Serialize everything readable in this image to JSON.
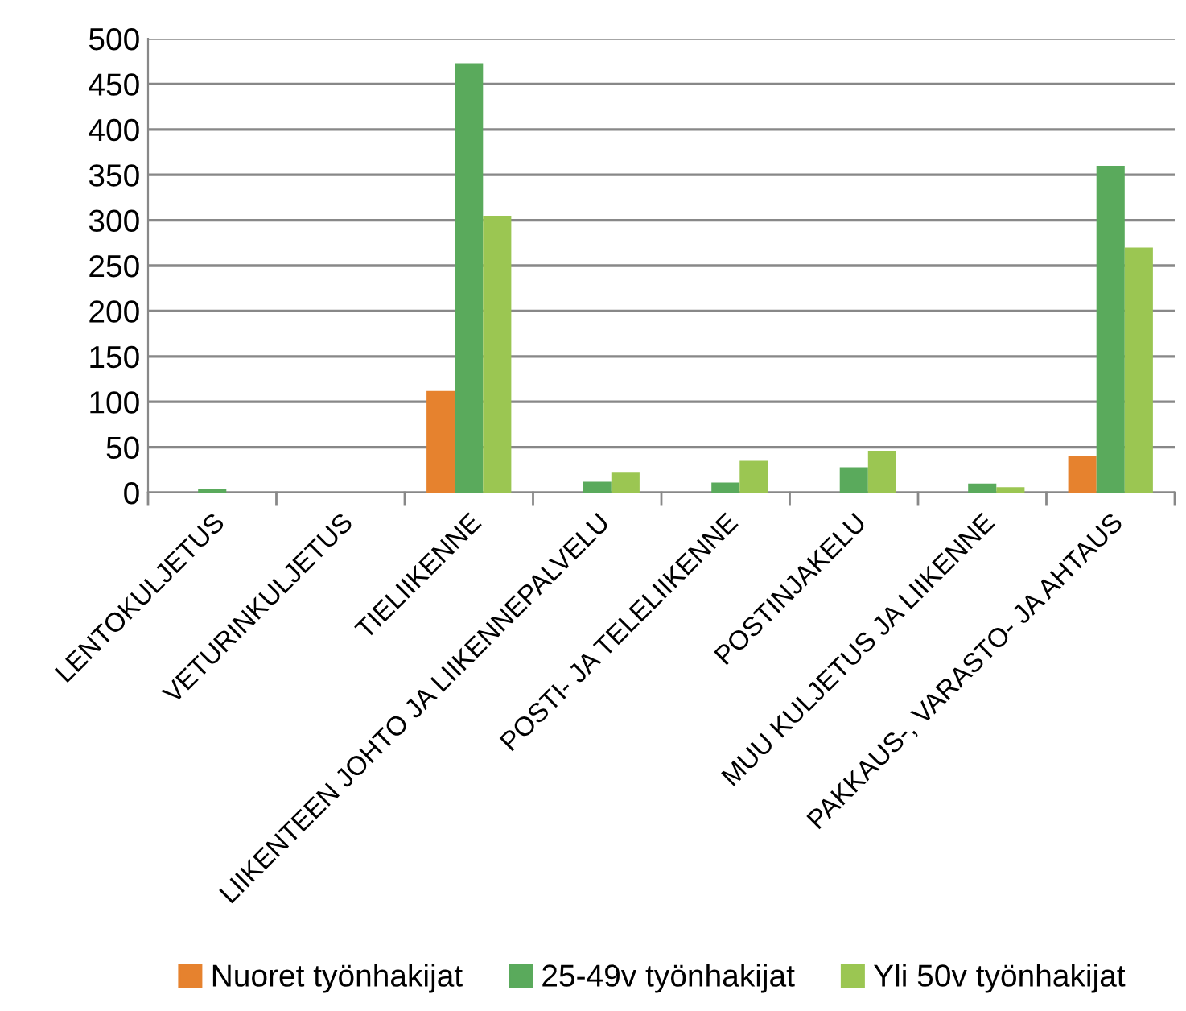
{
  "chart_data": {
    "type": "bar",
    "categories": [
      "LENTOKULJETUS",
      "VETURINKULJETUS",
      "TIELIIKENNE",
      "LIIKENTEEN JOHTO JA LIIKENNEPALVELU",
      "POSTI- JA TELELIIKENNE",
      "POSTINJAKELU",
      "MUU KULJETUS JA LIIKENNE",
      "PAKKAUS-, VARASTO- JA AHTAUS"
    ],
    "series": [
      {
        "name": "Nuoret työnhakijat",
        "color": "#e6822e",
        "values": [
          0,
          0,
          112,
          0,
          0,
          0,
          0,
          40
        ]
      },
      {
        "name": "25-49v työnhakijat",
        "color": "#5aaa5c",
        "values": [
          4,
          0,
          473,
          12,
          11,
          28,
          10,
          360
        ]
      },
      {
        "name": "Yli 50v työnhakijat",
        "color": "#9bc652",
        "values": [
          0,
          0,
          305,
          22,
          35,
          46,
          6,
          270
        ]
      }
    ],
    "ylim": [
      0,
      500
    ],
    "yticks": [
      0,
      50,
      100,
      150,
      200,
      250,
      300,
      350,
      400,
      450,
      500
    ],
    "grid": "y",
    "legend": "bottom"
  }
}
